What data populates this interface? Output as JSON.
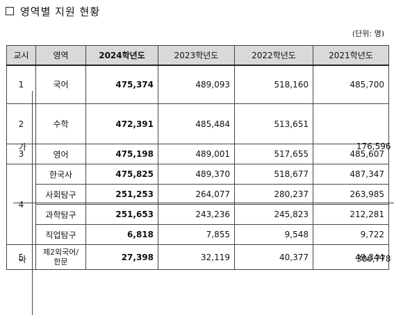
{
  "title": "영역별 지원 현황",
  "unit": "(단위: 명)",
  "headers": [
    "교시",
    "영역",
    "2024학년도",
    "2023학년도",
    "2022학년도",
    "2021학년도"
  ],
  "rows": {
    "korean": {
      "period": "1",
      "subject": "국어",
      "y2024": "475,374",
      "y2023": "489,093",
      "y2022": "518,160",
      "y2021": "485,700"
    },
    "math": {
      "period": "2",
      "subject": "수학",
      "y2024": "472,391",
      "y2023": "485,484",
      "y2022": "513,651",
      "y2021_ga_label": "가",
      "y2021_ga": "176,596",
      "y2021_na_label": "나",
      "y2021_na": "306,778"
    },
    "english": {
      "period": "3",
      "subject": "영어",
      "y2024": "475,198",
      "y2023": "489,001",
      "y2022": "517,655",
      "y2021": "485,607"
    },
    "history": {
      "period": "4",
      "subject": "한국사",
      "y2024": "475,825",
      "y2023": "489,370",
      "y2022": "518,677",
      "y2021": "487,347"
    },
    "social": {
      "subject": "사회탐구",
      "y2024": "251,253",
      "y2023": "264,077",
      "y2022": "280,237",
      "y2021": "263,985"
    },
    "science": {
      "subject": "과학탐구",
      "y2024": "251,653",
      "y2023": "243,236",
      "y2022": "245,823",
      "y2021": "212,281"
    },
    "vocation": {
      "subject": "직업탐구",
      "y2024": "6,818",
      "y2023": "7,855",
      "y2022": "9,548",
      "y2021": "9,722"
    },
    "foreign": {
      "period": "5",
      "subject_line1": "제2외국어/",
      "subject_line2": "한문",
      "y2024": "27,398",
      "y2023": "32,119",
      "y2022": "40,377",
      "y2021": "49,344"
    }
  }
}
